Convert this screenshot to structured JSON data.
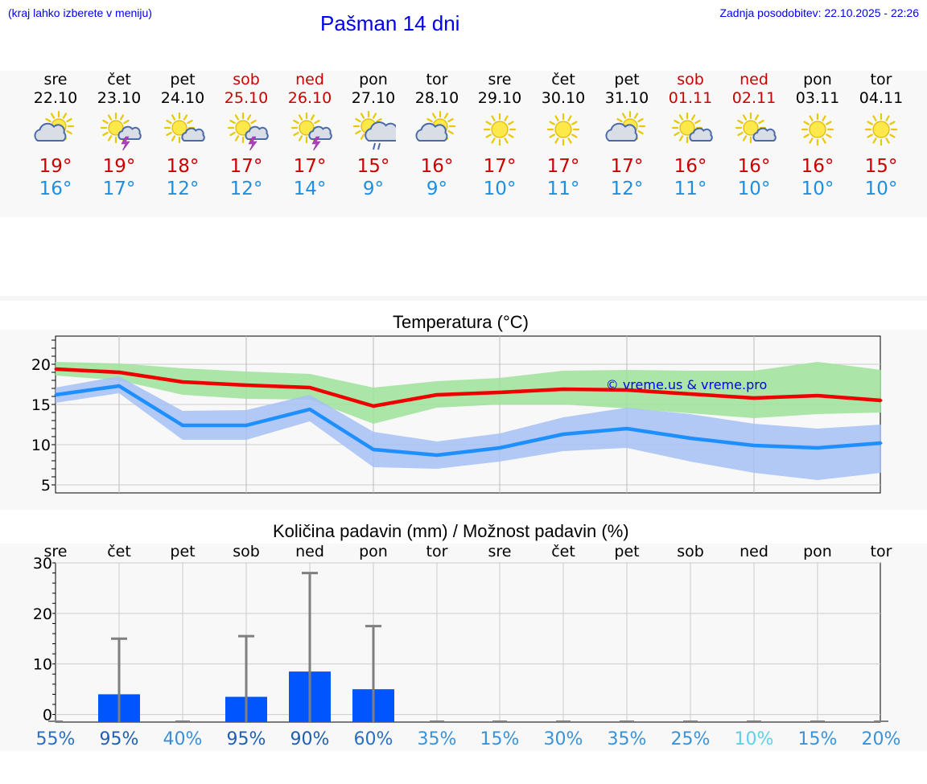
{
  "header": {
    "hint": "(kraj lahko izberete v meniju)",
    "title": "Pašman 14 dni",
    "updated": "Zadnja posodobitev: 22.10.2025 - 22:26"
  },
  "colors": {
    "link": "#0000ee",
    "max_temp": "#cc0000",
    "min_temp": "#1e8fe0",
    "weekend": "#cc0000",
    "bar": "#0055ff"
  },
  "days": [
    {
      "name": "sre",
      "date": "22.10",
      "icon": "sun-cloud-icon",
      "max": "19°",
      "min": "16°",
      "weekend": false
    },
    {
      "name": "čet",
      "date": "23.10",
      "icon": "sun-storm-icon",
      "max": "19°",
      "min": "17°",
      "weekend": false
    },
    {
      "name": "pet",
      "date": "24.10",
      "icon": "sun-small-cloud-icon",
      "max": "18°",
      "min": "12°",
      "weekend": false
    },
    {
      "name": "sob",
      "date": "25.10",
      "icon": "sun-storm-icon",
      "max": "17°",
      "min": "12°",
      "weekend": true
    },
    {
      "name": "ned",
      "date": "26.10",
      "icon": "sun-storm-icon",
      "max": "17°",
      "min": "14°",
      "weekend": true
    },
    {
      "name": "pon",
      "date": "27.10",
      "icon": "sun-rain-icon",
      "max": "15°",
      "min": "9°",
      "weekend": false
    },
    {
      "name": "tor",
      "date": "28.10",
      "icon": "sun-cloud-icon",
      "max": "16°",
      "min": "9°",
      "weekend": false
    },
    {
      "name": "sre",
      "date": "29.10",
      "icon": "sun-icon",
      "max": "17°",
      "min": "10°",
      "weekend": false
    },
    {
      "name": "čet",
      "date": "30.10",
      "icon": "sun-icon",
      "max": "17°",
      "min": "11°",
      "weekend": false
    },
    {
      "name": "pet",
      "date": "31.10",
      "icon": "sun-cloud-icon",
      "max": "17°",
      "min": "12°",
      "weekend": false
    },
    {
      "name": "sob",
      "date": "01.11",
      "icon": "sun-small-cloud-icon",
      "max": "16°",
      "min": "11°",
      "weekend": true
    },
    {
      "name": "ned",
      "date": "02.11",
      "icon": "sun-small-cloud-icon",
      "max": "16°",
      "min": "10°",
      "weekend": true
    },
    {
      "name": "pon",
      "date": "03.11",
      "icon": "sun-icon",
      "max": "16°",
      "min": "10°",
      "weekend": false
    },
    {
      "name": "tor",
      "date": "04.11",
      "icon": "sun-icon",
      "max": "15°",
      "min": "10°",
      "weekend": false
    }
  ],
  "chart_data": [
    {
      "type": "line",
      "title": "Temperatura (°C)",
      "watermark": "© vreme.us & vreme.pro",
      "ylim": [
        4,
        23.5
      ],
      "yticks": [
        5,
        10,
        15,
        20
      ],
      "grid": true,
      "series": [
        {
          "name": "max",
          "color": "#ee0000",
          "values": [
            19.4,
            19.0,
            17.8,
            17.4,
            17.1,
            14.8,
            16.2,
            16.5,
            16.9,
            16.8,
            16.3,
            15.8,
            16.1,
            15.5
          ],
          "range_low": [
            18.6,
            18.0,
            16.2,
            15.7,
            15.6,
            12.6,
            14.6,
            15.0,
            15.0,
            14.5,
            13.9,
            13.3,
            13.8,
            14.0
          ],
          "range_high": [
            20.3,
            20.1,
            19.5,
            19.1,
            18.8,
            17.1,
            17.9,
            18.3,
            19.2,
            19.3,
            19.2,
            19.2,
            20.3,
            19.3
          ]
        },
        {
          "name": "min",
          "color": "#1e8fff",
          "values": [
            16.2,
            17.3,
            12.4,
            12.4,
            14.4,
            9.4,
            8.7,
            9.6,
            11.3,
            12.0,
            10.8,
            9.9,
            9.6,
            10.2
          ],
          "range_low": [
            15.2,
            16.4,
            10.6,
            10.6,
            12.9,
            7.2,
            7.0,
            7.9,
            9.2,
            9.6,
            7.9,
            6.5,
            5.6,
            6.5
          ],
          "range_high": [
            17.1,
            18.5,
            14.2,
            14.3,
            16.2,
            11.6,
            10.4,
            11.4,
            13.4,
            14.6,
            13.8,
            12.6,
            12.0,
            12.5
          ]
        }
      ]
    },
    {
      "type": "bar",
      "title": "Količina padavin (mm) / Možnost padavin (%)",
      "categories": [
        "sre",
        "čet",
        "pet",
        "sob",
        "ned",
        "pon",
        "tor",
        "sre",
        "čet",
        "pet",
        "sob",
        "ned",
        "pon",
        "tor"
      ],
      "ylim": [
        -1.5,
        30
      ],
      "yticks": [
        0,
        10,
        20,
        30
      ],
      "values": [
        0,
        4.0,
        0,
        3.5,
        8.5,
        5.0,
        0,
        0,
        0,
        0,
        0,
        0,
        0,
        0
      ],
      "error_high": [
        0,
        15.0,
        0,
        15.5,
        28.0,
        17.5,
        0,
        0,
        0,
        0,
        0,
        0,
        0,
        0
      ],
      "probabilities": [
        {
          "label": "55%",
          "color": "#2a6fc0"
        },
        {
          "label": "95%",
          "color": "#1f5fb0"
        },
        {
          "label": "40%",
          "color": "#3a8ed8"
        },
        {
          "label": "95%",
          "color": "#1f5fb0"
        },
        {
          "label": "90%",
          "color": "#1f5fb0"
        },
        {
          "label": "60%",
          "color": "#2a6fc0"
        },
        {
          "label": "35%",
          "color": "#3a92d8"
        },
        {
          "label": "15%",
          "color": "#3a92d8"
        },
        {
          "label": "30%",
          "color": "#3a92d8"
        },
        {
          "label": "35%",
          "color": "#3a92d8"
        },
        {
          "label": "25%",
          "color": "#3a92d8"
        },
        {
          "label": "10%",
          "color": "#5fd0e8"
        },
        {
          "label": "15%",
          "color": "#3a92d8"
        },
        {
          "label": "20%",
          "color": "#3a92d8"
        }
      ]
    }
  ]
}
